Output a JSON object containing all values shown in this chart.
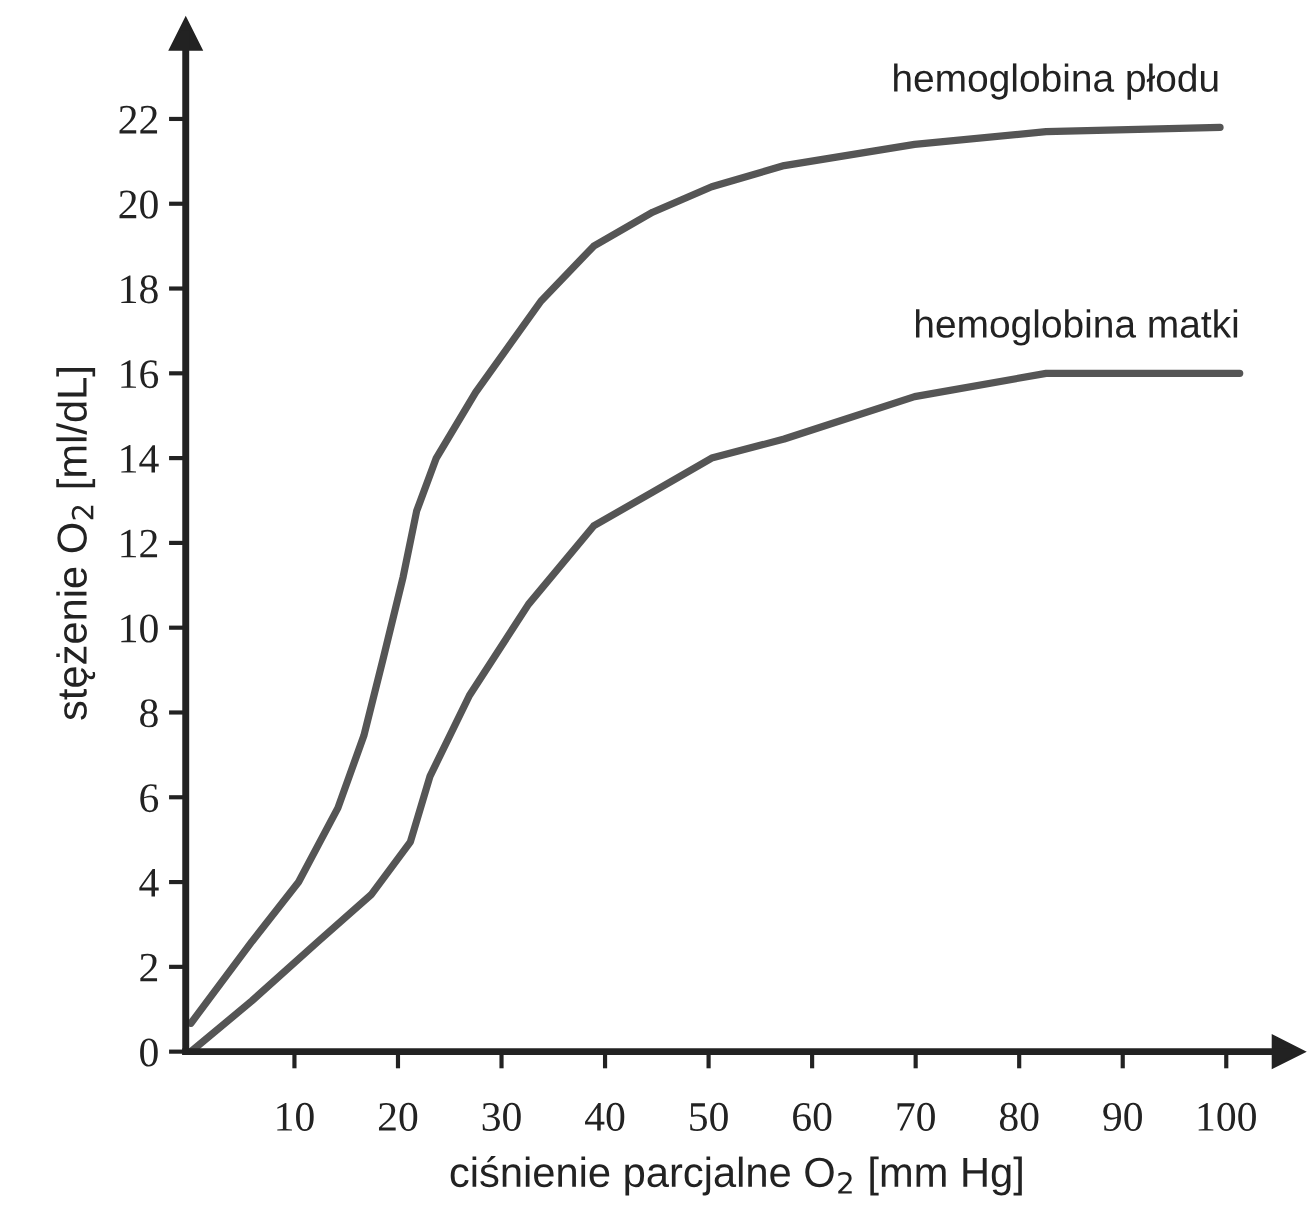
{
  "chart_data": {
    "type": "line",
    "xlabel": "ciśnienie parcjalne O$_{2}$ [mm Hg]",
    "ylabel": "stężenie O$_{2}$ [ml/dL]",
    "xlim": [
      -0.5,
      106
    ],
    "ylim": [
      0,
      24
    ],
    "xticks": [
      10,
      20,
      30,
      40,
      50,
      60,
      70,
      80,
      90,
      100
    ],
    "yticks": [
      0,
      2,
      4,
      6,
      8,
      10,
      12,
      14,
      16,
      18,
      20,
      22
    ],
    "grid": false,
    "legend": false,
    "marker": "none",
    "line_style": "solid",
    "series": [
      {
        "name": "hemoglobina płodu",
        "color": "#555555",
        "x": [
          0,
          5.9,
          10.4,
          14.2,
          16.7,
          18.6,
          20.5,
          21.8,
          23.7,
          27.5,
          33.8,
          38.9,
          44.6,
          50.3,
          57.3,
          69.9,
          82.6,
          99.4
        ],
        "values": [
          0.67,
          2.6,
          4.0,
          5.75,
          7.45,
          9.3,
          11.2,
          12.75,
          14.0,
          15.55,
          17.7,
          19.0,
          19.8,
          20.4,
          20.9,
          21.4,
          21.7,
          21.8
        ]
      },
      {
        "name": "hemoglobina matki",
        "color": "#555555",
        "x": [
          0,
          5.9,
          12.3,
          17.4,
          21.2,
          23.1,
          26.9,
          32.6,
          38.9,
          44.6,
          50.3,
          57.3,
          69.9,
          82.6,
          101.3
        ],
        "values": [
          0,
          1.2,
          2.6,
          3.7,
          4.95,
          6.5,
          8.4,
          10.55,
          12.4,
          13.2,
          14.0,
          14.45,
          15.45,
          16.0,
          16.0
        ]
      }
    ]
  }
}
